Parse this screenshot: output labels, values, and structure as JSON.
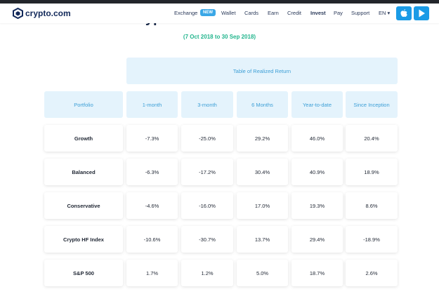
{
  "nav": {
    "logo": "crypto.com",
    "items": [
      "Exchange",
      "Wallet",
      "Cards",
      "Earn",
      "Credit",
      "Invest",
      "Pay",
      "Support"
    ],
    "badge": "NEW",
    "language": "EN"
  },
  "header": {
    "title": "Crypto Invest Performance",
    "subtitle": "(7 Oct 2018 to 30 Sep 2018)"
  },
  "table": {
    "caption": "Table of Realized Return",
    "columns": [
      "Portfolio",
      "1-month",
      "3-month",
      "6 Months",
      "Year-to-date",
      "Since Inception"
    ],
    "rows": [
      [
        "Growth",
        "-7.3%",
        "-25.0%",
        "29.2%",
        "46.0%",
        "20.4%"
      ],
      [
        "Balanced",
        "-6.3%",
        "-17.2%",
        "30.4%",
        "40.9%",
        "18.9%"
      ],
      [
        "Conservative",
        "-4.6%",
        "-16.0%",
        "17.0%",
        "19.3%",
        "8.6%"
      ],
      [
        "Crypto HF Index",
        "-10.6%",
        "-30.7%",
        "13.7%",
        "29.4%",
        "-18.9%"
      ],
      [
        "S&P 500",
        "1.7%",
        "1.2%",
        "5.0%",
        "18.7%",
        "2.6%"
      ]
    ]
  }
}
